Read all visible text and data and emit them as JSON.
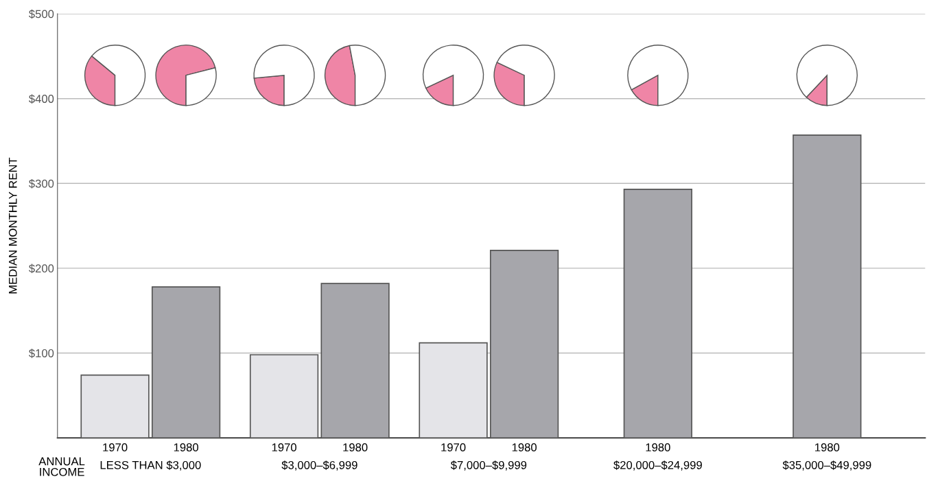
{
  "chart_data": [
    {
      "type": "bar",
      "ylabel": "MEDIAN MONTHLY RENT",
      "xlabel": "ANNUAL\nINCOME",
      "categories": [
        "LESS THAN $3,000",
        "$3,000–$6,999",
        "$7,000–$9,999",
        "$20,000–$24,999",
        "$35,000–$49,999"
      ],
      "series": [
        {
          "name": "1970",
          "color": "#e4e4e8",
          "values": [
            74,
            98,
            112,
            null,
            null
          ]
        },
        {
          "name": "1980",
          "color": "#a6a6ab",
          "values": [
            178,
            182,
            221,
            293,
            357
          ]
        }
      ],
      "ylim": [
        0,
        500
      ],
      "yticks": [
        {
          "value": 100,
          "label": "$100"
        },
        {
          "value": 200,
          "label": "$200"
        },
        {
          "value": 300,
          "label": "$300"
        },
        {
          "value": 400,
          "label": "$400"
        },
        {
          "value": 500,
          "label": "$500"
        }
      ],
      "grid": "y",
      "legend": false
    },
    {
      "type": "pie",
      "values": [
        36,
        64
      ],
      "colors": [
        "#ef85a6",
        "#ffffff"
      ]
    },
    {
      "type": "pie",
      "values": [
        71,
        29
      ],
      "colors": [
        "#ef85a6",
        "#ffffff"
      ]
    },
    {
      "type": "pie",
      "values": [
        23.5,
        76.5
      ],
      "colors": [
        "#ef85a6",
        "#ffffff"
      ]
    },
    {
      "type": "pie",
      "values": [
        47,
        53
      ],
      "colors": [
        "#ef85a6",
        "#ffffff"
      ]
    },
    {
      "type": "pie",
      "values": [
        18,
        82
      ],
      "colors": [
        "#ef85a6",
        "#ffffff"
      ]
    },
    {
      "type": "pie",
      "values": [
        32,
        68
      ],
      "colors": [
        "#ef85a6",
        "#ffffff"
      ]
    },
    {
      "type": "pie",
      "values": [
        17,
        83
      ],
      "colors": [
        "#ef85a6",
        "#ffffff"
      ]
    },
    {
      "type": "pie",
      "values": [
        12,
        88
      ],
      "colors": [
        "#ef85a6",
        "#ffffff"
      ]
    }
  ]
}
